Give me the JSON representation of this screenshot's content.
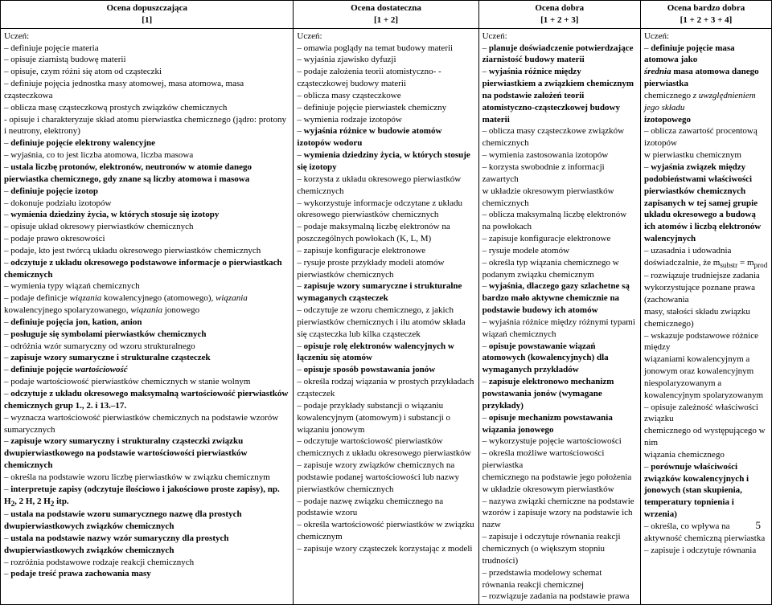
{
  "headers": [
    {
      "title": "Ocena dopuszczająca",
      "bracket": "[1]"
    },
    {
      "title": "Ocena dostateczna",
      "bracket": "[1 + 2]"
    },
    {
      "title": "Ocena dobra",
      "bracket": "[1 + 2 + 3]"
    },
    {
      "title": "Ocena bardzo dobra",
      "bracket": "[1 + 2 + 3 + 4]"
    }
  ],
  "page_number": "5",
  "col1": {
    "lead": "Uczeń:",
    "items": [
      {
        "t": "definiuje pojęcie materia"
      },
      {
        "t": "opisuje ziarnistą budowę materii"
      },
      {
        "t": "opisuje, czym różni się atom od cząsteczki"
      },
      {
        "t": "definiuje pojęcia jednostka masy atomowej, masa atomowa, masa cząsteczkowa"
      },
      {
        "t": "oblicza masę cząsteczkową prostych związków chemicznych"
      },
      {
        "t": "opisuje i charakteryzuje skład atomu pierwiastka chemicznego (jądro: protony i neutrony, elektrony)",
        "pre": "- "
      },
      {
        "t": "definiuje pojęcie elektrony walencyjne",
        "b": true
      },
      {
        "t": "wyjaśnia, co to jest liczba atomowa, liczba masowa"
      },
      {
        "t": "ustala liczbę protonów, elektronów, neutronów w atomie danego pierwiastka chemicznego, gdy znane są liczby atomowa i masowa",
        "b": true
      },
      {
        "t": "definiuje pojęcie izotop",
        "b": true
      },
      {
        "t": "dokonuje podziału izotopów"
      },
      {
        "t": "wymienia dziedziny życia, w których stosuje się izotopy",
        "b": true
      },
      {
        "t": "opisuje układ okresowy pierwiastków chemicznych"
      },
      {
        "t": "podaje prawo okresowości"
      },
      {
        "t": "podaje, kto jest twórcą układu okresowego pierwiastków chemicznych"
      },
      {
        "t": "odczytuje z układu okresowego podstawowe informacje o pierwiastkach chemicznych",
        "b": true
      },
      {
        "t": "wymienia typy wiązań chemicznych"
      },
      {
        "t": "podaje definicje <i>wiązania</i> kowalencyjnego (atomowego), <i>wiązania</i> kowalencyjnego spolaryzowanego, <i>wiązania</i> jonowego",
        "html": true
      },
      {
        "t": "definiuje pojęcia jon, kation, anion",
        "b": true
      },
      {
        "t": "posługuje się symbolami pierwiastków chemicznych",
        "b": true
      },
      {
        "t": "odróżnia wzór sumaryczny od wzoru strukturalnego"
      },
      {
        "t": "zapisuje wzory sumaryczne i strukturalne cząsteczek",
        "b": true
      },
      {
        "t": "definiuje pojęcie <i>wartościowość</i>",
        "html": true,
        "b": true
      },
      {
        "t": "podaje wartościowość pierwiastków chemicznych w stanie wolnym"
      },
      {
        "t": "odczytuje z układu okresowego maksymalną wartościowość pierwiastków chemicznych grup 1., 2. i 13.–17.",
        "b": true
      },
      {
        "t": "wyznacza wartościowość pierwiastków chemicznych na podstawie wzorów sumarycznych"
      },
      {
        "t": "zapisuje wzory sumaryczny i strukturalny cząsteczki związku dwupierwiastkowego na podstawie wartościowości pierwiastków chemicznych",
        "b": true
      },
      {
        "t": "określa na podstawie wzoru liczbę pierwiastków w związku chemicznym"
      },
      {
        "t": "interpretuje zapisy (odczytuje ilościowo i jakościowo proste zapisy), np. H<sub>2</sub>, 2 H, 2 H<sub>2</sub> itp.",
        "html": true,
        "b": true
      },
      {
        "t": "ustala na podstawie wzoru sumarycznego nazwę dla prostych dwupierwiastkowych związków chemicznych",
        "b": true
      },
      {
        "t": "ustala na podstawie nazwy wzór sumaryczny dla prostych dwupierwiastkowych związków chemicznych",
        "b": true
      },
      {
        "t": "rozróżnia podstawowe rodzaje reakcji chemicznych"
      },
      {
        "t": "podaje treść prawa zachowania masy",
        "b": true
      }
    ]
  },
  "col2": {
    "lead": "Uczeń:",
    "items": [
      {
        "t": "omawia poglądy na temat budowy materii"
      },
      {
        "t": "wyjaśnia zjawisko dyfuzji"
      },
      {
        "t": "podaje założenia teorii atomistyczno- -cząsteczkowej budowy materii"
      },
      {
        "t": "oblicza masy cząsteczkowe"
      },
      {
        "t": "definiuje pojęcie pierwiastek chemiczny"
      },
      {
        "t": "wymienia rodzaje izotopów"
      },
      {
        "t": "wyjaśnia różnice w budowie atomów izotopów wodoru",
        "b": true
      },
      {
        "t": "wymienia dziedziny życia, w których stosuje się izotopy",
        "b": true
      },
      {
        "t": "korzysta z układu okresowego pierwiastków chemicznych"
      },
      {
        "t": "wykorzystuje informacje odczytane z układu okresowego pierwiastków chemicznych"
      },
      {
        "t": "podaje maksymalną liczbę elektronów na poszczególnych powłokach (K, L, M)"
      },
      {
        "t": "zapisuje konfiguracje elektronowe"
      },
      {
        "t": "rysuje proste przykłady modeli atomów pierwiastków chemicznych"
      },
      {
        "t": "zapisuje wzory sumaryczne i strukturalne wymaganych cząsteczek",
        "b": true
      },
      {
        "t": "odczytuje ze wzoru chemicznego, z jakich pierwiastków chemicznych i ilu atomów składa się cząsteczka lub kilka cząsteczek"
      },
      {
        "t": "opisuje rolę elektronów walencyjnych w łączeniu się atomów",
        "b": true
      },
      {
        "t": "opisuje sposób powstawania jonów",
        "b": true
      },
      {
        "t": "określa rodzaj wiązania w prostych przykładach cząsteczek"
      },
      {
        "t": "podaje przykłady substancji o wiązaniu kowalencyjnym (atomowym) i substancji o wiązaniu jonowym"
      },
      {
        "t": "odczytuje wartościowość pierwiastków chemicznych z układu okresowego pierwiastków"
      },
      {
        "t": "zapisuje wzory związków chemicznych na podstawie podanej wartościowości lub nazwy pierwiastków chemicznych"
      },
      {
        "t": "podaje nazwę związku chemicznego na podstawie wzoru"
      },
      {
        "t": "określa wartościowość pierwiastków w związku chemicznym"
      },
      {
        "t": "zapisuje wzory cząsteczek korzystając z modeli"
      }
    ]
  },
  "col3": {
    "lead": "Uczeń:",
    "items": [
      {
        "t": "planuje doświadczenie potwierdzające ziarnistość budowy materii",
        "b": true
      },
      {
        "t": "wyjaśnia różnice między pierwiastkiem a związkiem chemicznym na podstawie założeń teorii atomistyczno-cząsteczkowej budowy materii",
        "b": true
      },
      {
        "t": "oblicza masy cząsteczkowe związków chemicznych"
      },
      {
        "t": "wymienia zastosowania izotopów"
      },
      {
        "t": "korzysta swobodnie z informacji zawartych"
      },
      {
        "t": "w układzie okresowym pierwiastków chemicznych",
        "pre": ""
      },
      {
        "t": "oblicza maksymalną liczbę elektronów na powłokach"
      },
      {
        "t": "zapisuje konfiguracje elektronowe"
      },
      {
        "t": "rysuje modele atomów"
      },
      {
        "t": "określa typ wiązania chemicznego w podanym związku chemicznym"
      },
      {
        "t": "wyjaśnia, dlaczego gazy szlachetne są bardzo mało aktywne chemicznie na podstawie budowy ich atomów",
        "b": true
      },
      {
        "t": "wyjaśnia różnice między różnymi typami wiązań chemicznych"
      },
      {
        "t": "opisuje powstawanie wiązań atomowych (kowalencyjnych) dla wymaganych przykładów",
        "b": true
      },
      {
        "t": "zapisuje elektronowo mechanizm powstawania jonów (wymagane przykłady)",
        "b": true
      },
      {
        "t": "opisuje mechanizm powstawania wiązania jonowego",
        "b": true
      },
      {
        "t": "wykorzystuje pojęcie wartościowości"
      },
      {
        "t": "określa możliwe wartościowości pierwiastka"
      },
      {
        "t": "chemicznego na podstawie jego położenia w układzie okresowym pierwiastków",
        "pre": ""
      },
      {
        "t": "nazywa związki chemiczne na podstawie wzorów i zapisuje wzory na podstawie ich nazw"
      },
      {
        "t": "zapisuje i odczytuje równania reakcji chemicznych (o większym stopniu trudności)"
      },
      {
        "t": "przedstawia modelowy schemat równania reakcji chemicznej"
      },
      {
        "t": "rozwiązuje zadania na podstawie prawa"
      }
    ]
  },
  "col4": {
    "lead": "Uczeń:",
    "items": [
      {
        "t": "definiuje pojęcie masa atomowa jako",
        "b": true
      },
      {
        "t": "<i>średnia</i> masa atomowa danego pierwiastka",
        "html": true,
        "b": true,
        "pre": ""
      },
      {
        "t": "chemicznego <i>z uwzględnieniem jego składu</i>",
        "html": true,
        "pre": ""
      },
      {
        "t": "izotopowego",
        "b": true,
        "pre": ""
      },
      {
        "t": "oblicza zawartość procentową izotopów"
      },
      {
        "t": "w pierwiastku chemicznym",
        "pre": ""
      },
      {
        "t": "wyjaśnia związek między podobieństwami właściwości pierwiastków chemicznych zapisanych w tej samej grupie układu okresowego a budową ich atomów i liczbą elektronów walencyjnych",
        "b": true
      },
      {
        "t": "uzasadnia i udowadnia doświadczalnie, że m<sub>substr</sub> = m<sub>prod</sub>",
        "html": true
      },
      {
        "t": "rozwiązuje trudniejsze zadania wykorzystujące poznane prawa (zachowania"
      },
      {
        "t": "masy, stałości składu związku chemicznego)",
        "pre": ""
      },
      {
        "t": "wskazuje podstawowe różnice między"
      },
      {
        "t": "wiązaniami kowalencyjnym a jonowym oraz kowalencyjnym niespolaryzowanym a kowalencyjnym spolaryzowanym",
        "pre": ""
      },
      {
        "t": "opisuje zależność właściwości związku"
      },
      {
        "t": "chemicznego od występującego w nim",
        "pre": ""
      },
      {
        "t": "wiązania chemicznego",
        "pre": ""
      },
      {
        "t": "porównuje właściwości związków kowalencyjnych i jonowych (stan skupienia, temperatury topnienia i wrzenia)",
        "b": true
      },
      {
        "t": "określa, co wpływa na aktywność chemiczną pierwiastka"
      },
      {
        "t": "zapisuje i odczytuje równania"
      }
    ]
  }
}
